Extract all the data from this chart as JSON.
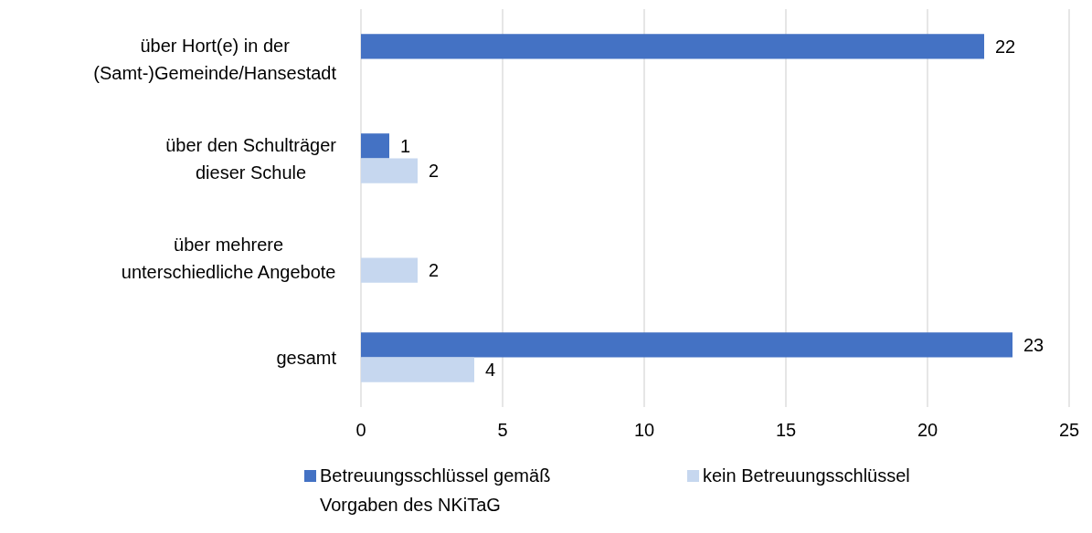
{
  "chart_data": {
    "type": "bar",
    "orientation": "horizontal",
    "categories": [
      "über Hort(e) in der\n(Samt-)Gemeinde/Hansestadt",
      "über den Schulträger\ndieser Schule",
      "über mehrere\nunterschiedliche Angebote",
      "gesamt"
    ],
    "series": [
      {
        "name": "Betreuungsschlüssel gemäß\nVorgaben des NKiTaG",
        "color": "#4472c4",
        "values": [
          22,
          1,
          null,
          23
        ]
      },
      {
        "name": "kein Betreuungsschlüssel",
        "color": "#c6d7ef",
        "values": [
          null,
          2,
          2,
          4
        ]
      }
    ],
    "xlim": [
      0,
      25
    ],
    "xticks": [
      0,
      5,
      10,
      15,
      20,
      25
    ],
    "grid": "x",
    "legend": "bottom",
    "data_labels": true
  }
}
